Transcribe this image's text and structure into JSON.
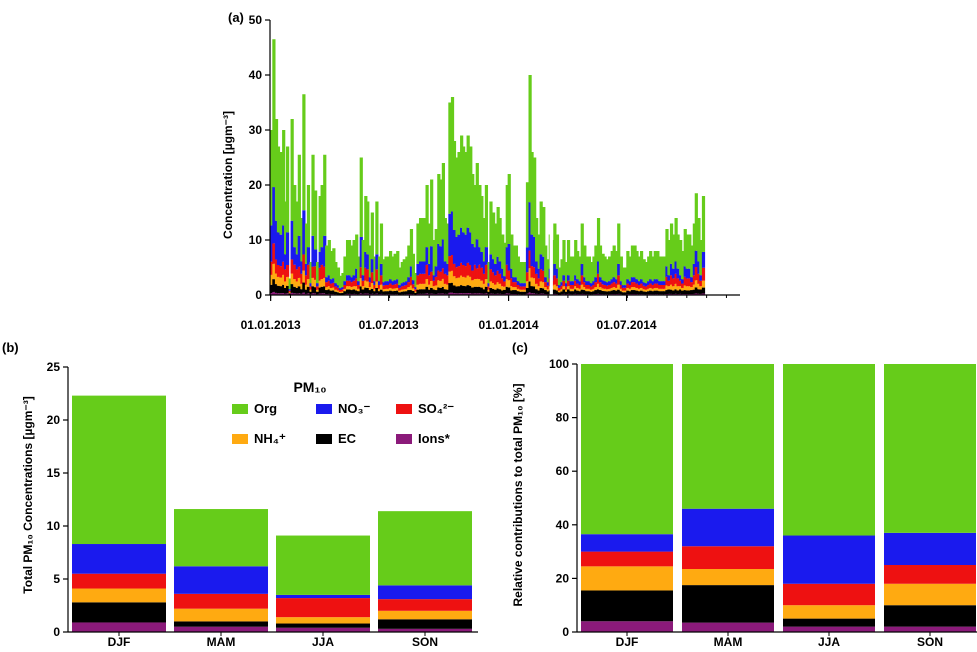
{
  "colors": {
    "Org": "#66cc1a",
    "NO3": "#1a1aee",
    "SO4": "#ee1111",
    "NH4": "#ffaa11",
    "EC": "#000000",
    "Ions": "#8b1a7a"
  },
  "chart_data": [
    {
      "panel": "(a)",
      "type": "bar",
      "stacked": true,
      "ylabel": "Concentration [µgm⁻³]",
      "ylim": [
        0,
        50
      ],
      "yticks": [
        0,
        10,
        20,
        30,
        40,
        50
      ],
      "xticks": [
        "01.01.2013",
        "01.07.2013",
        "01.01.2014",
        "01.07.2014"
      ],
      "xlim_days": [
        -1,
        720
      ],
      "xtick_days": [
        0,
        181,
        365,
        546
      ],
      "series_order": [
        "Ions",
        "EC",
        "NH4",
        "SO4",
        "NO3",
        "Org"
      ],
      "x_days": [
        2,
        5,
        9,
        12,
        16,
        20,
        23,
        26,
        30,
        33,
        37,
        41,
        44,
        48,
        51,
        55,
        58,
        62,
        65,
        69,
        72,
        76,
        79,
        83,
        86,
        90,
        93,
        97,
        100,
        104,
        107,
        111,
        114,
        118,
        121,
        125,
        128,
        132,
        135,
        139,
        142,
        146,
        149,
        153,
        156,
        160,
        163,
        167,
        170,
        174,
        177,
        181,
        184,
        188,
        191,
        195,
        198,
        202,
        205,
        209,
        212,
        216,
        219,
        223,
        226,
        230,
        233,
        237,
        240,
        244,
        247,
        251,
        254,
        258,
        261,
        265,
        268,
        272,
        275,
        279,
        282,
        286,
        289,
        293,
        296,
        300,
        303,
        307,
        310,
        314,
        317,
        321,
        324,
        328,
        331,
        335,
        338,
        342,
        345,
        349,
        352,
        356,
        359,
        363,
        366,
        370,
        373,
        377,
        380,
        384,
        387,
        391,
        394,
        398,
        401,
        405,
        408,
        412,
        415,
        419,
        422,
        426,
        429,
        433,
        436,
        440,
        443,
        447,
        450,
        454,
        457,
        461,
        464,
        468,
        471,
        475,
        478,
        482,
        485,
        489,
        492,
        496,
        499,
        503,
        506,
        510,
        513,
        517,
        520,
        524,
        527,
        531,
        534,
        538,
        541,
        545,
        548,
        552,
        555,
        559,
        562,
        566,
        569,
        573,
        576,
        580,
        583,
        587,
        590,
        594,
        597,
        601,
        604,
        608,
        611,
        615,
        618,
        622,
        625,
        629,
        632,
        636,
        639,
        643,
        646,
        650,
        653,
        657,
        660,
        664,
        667,
        671,
        674,
        678,
        681,
        685,
        688,
        692,
        695,
        699,
        702,
        706,
        709,
        713
      ],
      "totals": [
        30,
        46.5,
        32,
        27,
        26,
        30,
        17,
        27,
        3,
        32,
        20,
        17,
        25.5,
        14,
        36.5,
        13,
        20,
        6,
        25.5,
        19,
        6,
        18,
        20,
        25.5,
        9,
        10,
        8,
        8.5,
        6,
        5,
        3.5,
        4,
        7,
        10,
        10,
        9,
        10,
        11,
        7,
        25,
        10,
        18,
        17,
        9,
        15,
        7,
        17,
        7,
        13,
        6.5,
        7,
        7,
        8,
        7,
        7.5,
        8,
        5,
        6,
        6.5,
        7,
        9,
        12,
        7.5,
        4,
        13,
        14,
        14,
        14,
        20,
        13,
        21,
        10,
        12,
        22,
        21,
        24,
        14,
        13,
        35,
        36,
        28,
        25,
        26,
        29,
        27,
        26,
        29,
        27,
        22,
        20,
        24,
        20,
        18,
        14,
        20,
        6,
        17,
        15,
        13,
        16,
        14,
        11,
        9.5,
        20,
        22,
        11,
        9,
        9,
        7,
        6,
        6,
        6,
        20.5,
        40,
        26,
        25,
        14,
        11,
        17,
        16,
        9,
        6.5,
        11,
        10,
        13,
        11,
        5,
        6.5,
        10,
        6,
        10,
        7,
        7,
        10,
        8,
        7,
        13,
        9,
        7,
        7,
        6,
        7,
        9,
        14,
        9,
        7.5,
        7,
        6.5,
        7,
        8,
        9,
        8,
        13,
        7,
        5,
        5,
        8,
        7,
        9,
        9,
        8,
        7,
        8,
        6.5,
        6,
        7,
        8,
        7,
        8,
        8,
        7,
        7,
        7,
        12,
        10,
        13,
        11,
        14,
        11,
        10,
        8,
        12,
        11,
        11,
        9,
        13,
        18.5,
        14,
        10,
        18
      ],
      "gaps": [
        [
          428,
          433
        ]
      ]
    },
    {
      "panel": "(b)",
      "type": "bar",
      "stacked": true,
      "legend_title": "PM₁₀",
      "ylabel": "Total PM₁₀ Concentrations [µgm⁻³]",
      "ylim": [
        0,
        25
      ],
      "yticks": [
        0,
        5,
        10,
        15,
        20,
        25
      ],
      "categories": [
        "DJF",
        "MAM",
        "JJA",
        "SON"
      ],
      "series_order": [
        "Ions",
        "EC",
        "NH4",
        "SO4",
        "NO3",
        "Org"
      ],
      "series": [
        {
          "name": "Ions*",
          "key": "Ions",
          "values": [
            0.9,
            0.5,
            0.4,
            0.3
          ]
        },
        {
          "name": "EC",
          "key": "EC",
          "values": [
            1.9,
            0.5,
            0.4,
            0.9
          ]
        },
        {
          "name": "NH4+",
          "key": "NH4",
          "values": [
            1.3,
            1.2,
            0.6,
            0.8
          ]
        },
        {
          "name": "SO4 2-",
          "key": "SO4",
          "values": [
            1.4,
            1.4,
            1.8,
            1.1
          ]
        },
        {
          "name": "NO3-",
          "key": "NO3",
          "values": [
            2.8,
            2.6,
            0.3,
            1.3
          ]
        },
        {
          "name": "Org",
          "key": "Org",
          "values": [
            14.0,
            5.4,
            5.6,
            7.0
          ]
        }
      ],
      "legend": [
        {
          "key": "Org",
          "label": "Org"
        },
        {
          "key": "NO3",
          "label": "NO₃⁻"
        },
        {
          "key": "SO4",
          "label": "SO₄²⁻"
        },
        {
          "key": "NH4",
          "label": "NH₄⁺"
        },
        {
          "key": "EC",
          "label": "EC"
        },
        {
          "key": "Ions",
          "label": "Ions*"
        }
      ]
    },
    {
      "panel": "(c)",
      "type": "bar",
      "stacked": true,
      "ylabel": "Relative contributions to total PM₁₀ [%]",
      "ylim": [
        0,
        100
      ],
      "yticks": [
        0,
        20,
        40,
        60,
        80,
        100
      ],
      "categories": [
        "DJF",
        "MAM",
        "JJA",
        "SON"
      ],
      "series_order": [
        "Ions",
        "EC",
        "NH4",
        "SO4",
        "NO3",
        "Org"
      ],
      "series": [
        {
          "name": "Ions*",
          "key": "Ions",
          "values": [
            4,
            3.5,
            2,
            2
          ]
        },
        {
          "name": "EC",
          "key": "EC",
          "values": [
            11.5,
            14,
            3,
            8
          ]
        },
        {
          "name": "NH4+",
          "key": "NH4",
          "values": [
            9,
            6,
            5,
            8
          ]
        },
        {
          "name": "SO4 2-",
          "key": "SO4",
          "values": [
            5.5,
            8.5,
            8,
            7
          ]
        },
        {
          "name": "NO3-",
          "key": "NO3",
          "values": [
            6.5,
            14,
            18,
            12
          ]
        },
        {
          "name": "Org",
          "key": "Org",
          "values": [
            63.5,
            54,
            64,
            63
          ]
        }
      ]
    }
  ]
}
